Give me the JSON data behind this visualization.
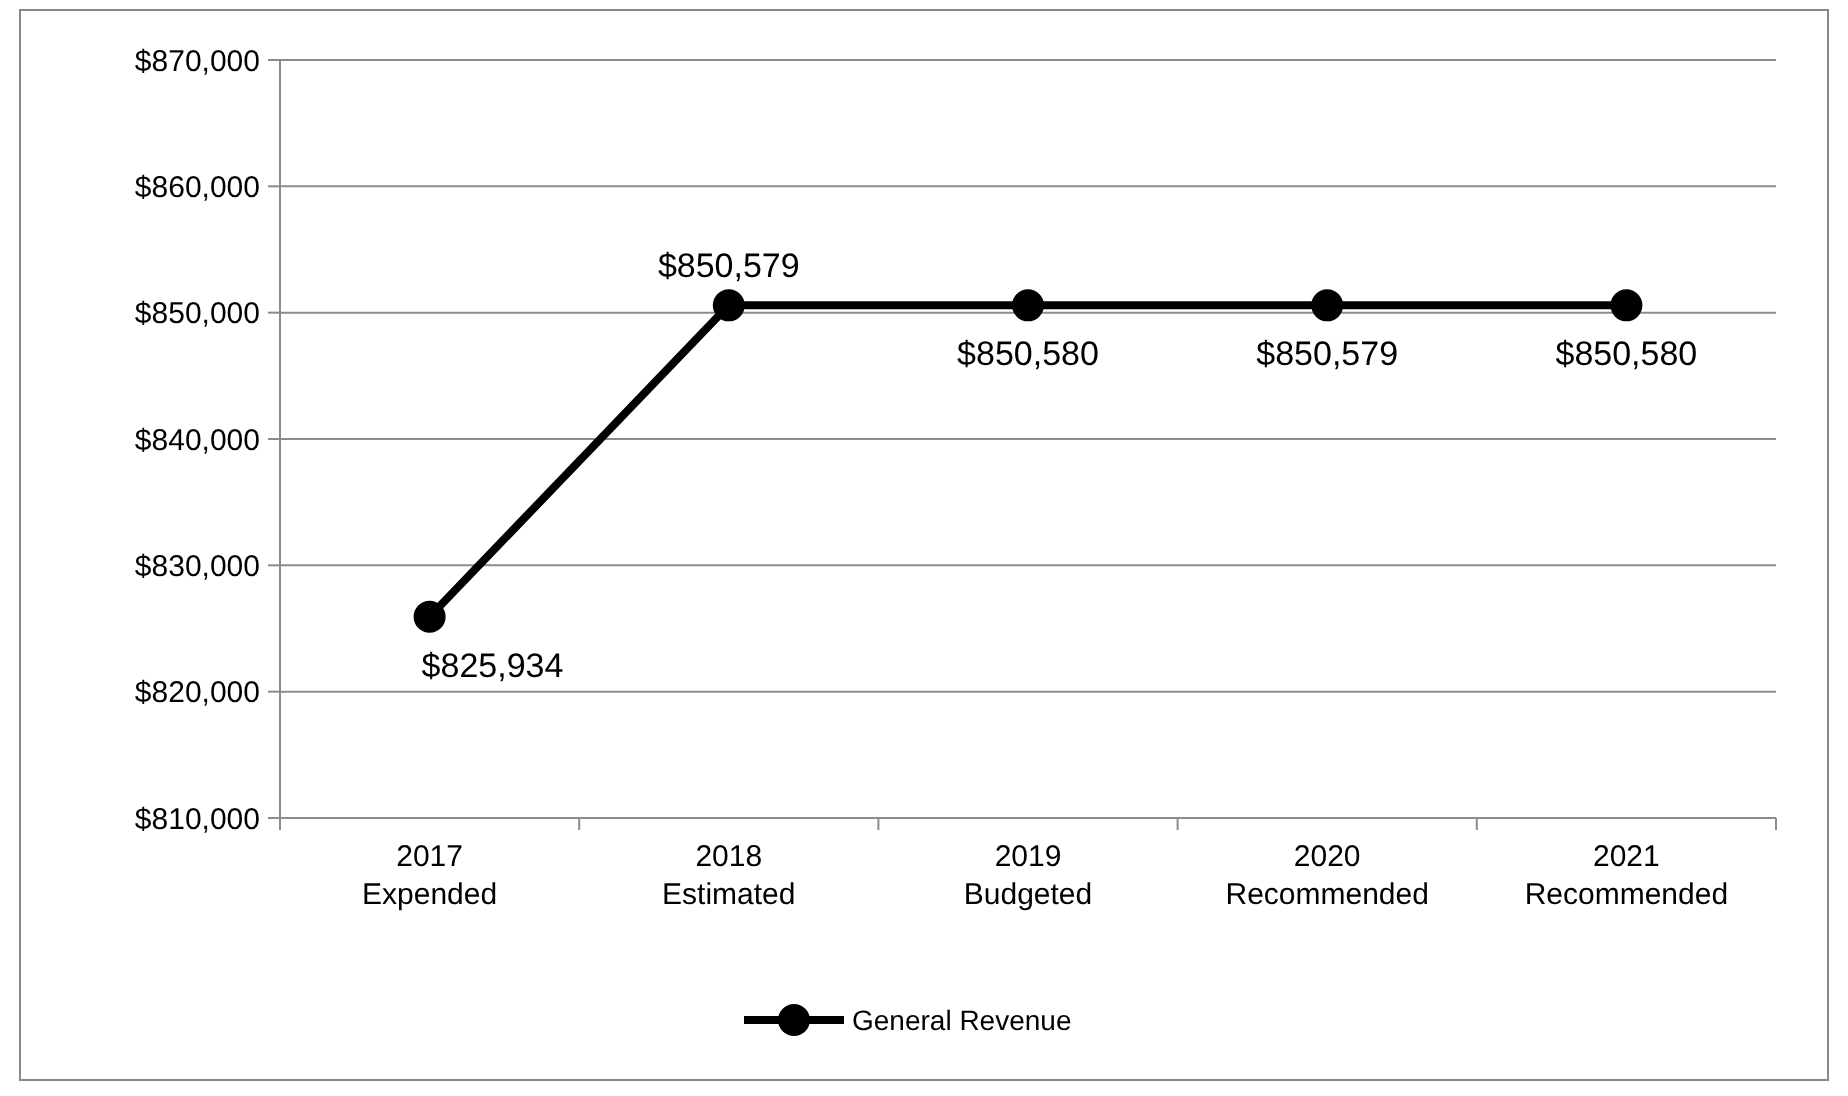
{
  "chart_data": {
    "type": "line",
    "categories": [
      "2017\nExpended",
      "2018\nEstimated",
      "2019\nBudgeted",
      "2020\nRecommended",
      "2021\nRecommended"
    ],
    "series": [
      {
        "name": "General Revenue",
        "color": "#000000",
        "values": [
          825934,
          850579,
          850580,
          850579,
          850580
        ],
        "value_labels": [
          "$825,934",
          "$850,579",
          "$850,580",
          "$850,579",
          "$850,580"
        ]
      }
    ],
    "ylim": [
      810000,
      870000
    ],
    "yticks": [
      {
        "value": 810000,
        "label": "$810,000"
      },
      {
        "value": 820000,
        "label": "$820,000"
      },
      {
        "value": 830000,
        "label": "$830,000"
      },
      {
        "value": 840000,
        "label": "$840,000"
      },
      {
        "value": 850000,
        "label": "$850,000"
      },
      {
        "value": 860000,
        "label": "$860,000"
      },
      {
        "value": 870000,
        "label": "$870,000"
      }
    ],
    "grid": "y",
    "legend": "bottom",
    "marker": "circle",
    "line_style": "solid"
  }
}
